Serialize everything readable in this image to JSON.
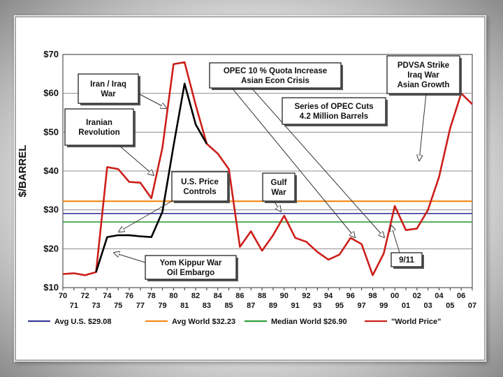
{
  "chart_data": {
    "type": "line",
    "ylabel": "$/BARREL",
    "y_ticks": [
      "$70",
      "$60",
      "$50",
      "$40",
      "$30",
      "$20",
      "$10"
    ],
    "ylim": [
      10,
      70
    ],
    "xlim": [
      1970,
      2007
    ],
    "x_ticks_top": [
      "70",
      "72",
      "74",
      "76",
      "78",
      "80",
      "82",
      "84",
      "86",
      "88",
      "90",
      "92",
      "94",
      "96",
      "98",
      "00",
      "02",
      "04",
      "06"
    ],
    "x_ticks_bottom": [
      "71",
      "73",
      "75",
      "77",
      "79",
      "81",
      "83",
      "85",
      "87",
      "89",
      "91",
      "93",
      "95",
      "97",
      "99",
      "01",
      "03",
      "05",
      "07"
    ],
    "grid": true,
    "series": [
      {
        "name": "\"World Price\"",
        "color": "#cc1f1a",
        "x": [
          1970,
          1971,
          1972,
          1973,
          1974,
          1975,
          1976,
          1977,
          1978,
          1979,
          1980,
          1981,
          1982,
          1983,
          1984,
          1985,
          1986,
          1987,
          1988,
          1989,
          1990,
          1991,
          1992,
          1993,
          1994,
          1995,
          1996,
          1997,
          1998,
          1999,
          2000,
          2001,
          2002,
          2003,
          2004,
          2005,
          2006,
          2007
        ],
        "y": [
          13.5,
          13.7,
          13.2,
          14.0,
          41.0,
          40.5,
          37.2,
          37.0,
          33.0,
          46.0,
          67.5,
          68.0,
          57.0,
          47.0,
          44.5,
          40.5,
          20.5,
          24.5,
          19.5,
          23.5,
          28.5,
          22.8,
          21.8,
          19.2,
          17.2,
          18.5,
          22.8,
          21.2,
          13.2,
          18.8,
          31.0,
          24.8,
          25.2,
          30.0,
          38.5,
          51.0,
          60.0,
          57.2
        ]
      },
      {
        "name": "U.S. Price Controls",
        "color": "#000000",
        "x": [
          1973,
          1974,
          1975,
          1976,
          1977,
          1978,
          1979,
          1980,
          1981,
          1982,
          1983
        ],
        "y": [
          14.0,
          23.0,
          23.5,
          23.5,
          23.2,
          23.0,
          29.5,
          46.5,
          62.5,
          52.0,
          47.0
        ]
      },
      {
        "name": "Avg U.S. $29.08",
        "color": "#3a3a9a",
        "constant": 29.08
      },
      {
        "name": "Avg World $32.23",
        "color": "#f08c1c",
        "constant": 32.23
      },
      {
        "name": "Median World  $26.90",
        "color": "#2e9e3c",
        "constant": 26.9
      }
    ],
    "annotations": [
      {
        "id": "yom-kippur",
        "lines": [
          "Yom Kippur War",
          "Oil Embargo"
        ]
      },
      {
        "id": "iranian-revolution",
        "lines": [
          "Iranian",
          "Revolution"
        ]
      },
      {
        "id": "iran-iraq",
        "lines": [
          "Iran / Iraq",
          "War"
        ]
      },
      {
        "id": "us-price-controls",
        "lines": [
          "U.S. Price",
          "Controls"
        ]
      },
      {
        "id": "opec-quota",
        "lines": [
          "OPEC 10 % Quota Increase",
          "Asian Econ Crisis"
        ]
      },
      {
        "id": "opec-cuts",
        "lines": [
          "Series of OPEC Cuts",
          "4.2 Million Barrels"
        ]
      },
      {
        "id": "gulf-war",
        "lines": [
          "Gulf",
          "War"
        ]
      },
      {
        "id": "nine-eleven",
        "lines": [
          "9/11"
        ]
      },
      {
        "id": "pdvsa",
        "lines": [
          "PDVSA Strike",
          "Iraq War",
          "Asian Growth"
        ]
      }
    ],
    "legend": [
      {
        "label": "Avg U.S. $29.08",
        "color": "#3a3a9a"
      },
      {
        "label": "Avg World $32.23",
        "color": "#f08c1c"
      },
      {
        "label": "Median World  $26.90",
        "color": "#2e9e3c"
      },
      {
        "label": "\"World Price\"",
        "color": "#cc1f1a"
      }
    ]
  }
}
